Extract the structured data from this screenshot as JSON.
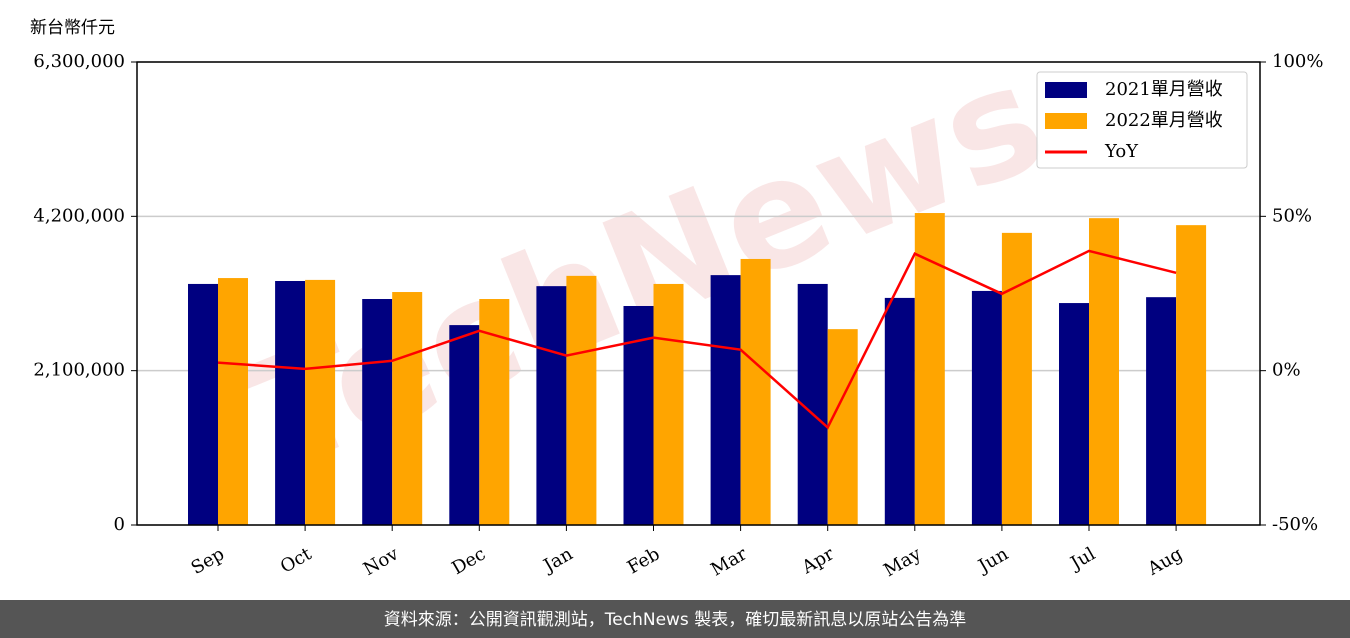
{
  "chart_data": {
    "type": "bar",
    "y_label": "新台幣仟元",
    "watermark": "TechNews",
    "footer": "資料來源：公開資訊觀測站，TechNews 製表，確切最新訊息以原站公告為準",
    "categories": [
      "Sep",
      "Oct",
      "Nov",
      "Dec",
      "Jan",
      "Feb",
      "Mar",
      "Apr",
      "May",
      "Jun",
      "Jul",
      "Aug"
    ],
    "series": [
      {
        "name": "2021單月營收",
        "color": "#000080",
        "values": [
          3280000,
          3320000,
          3075000,
          2720000,
          3250000,
          2980000,
          3400000,
          3280000,
          3090000,
          3185000,
          3020000,
          3100000
        ]
      },
      {
        "name": "2022單月營收",
        "color": "#ffa500",
        "values": [
          3360000,
          3335000,
          3170000,
          3075000,
          3390000,
          3280000,
          3620000,
          2665000,
          4245000,
          3975000,
          4175000,
          4080000
        ]
      },
      {
        "name": "YoY",
        "type": "line",
        "axis": "y2",
        "color": "#ff0000",
        "values": [
          2.6,
          0.6,
          3.2,
          12.9,
          4.9,
          10.7,
          6.8,
          -18.4,
          37.9,
          24.9,
          38.8,
          31.7
        ]
      }
    ],
    "ylim": [
      0,
      6300000
    ],
    "yticks": [
      0,
      {
        "value": 2100000,
        "label": "2,100,000"
      },
      {
        "value": 4200000,
        "label": "4,200,000"
      },
      {
        "value": 6300000,
        "label": "6,300,000"
      }
    ],
    "y2lim": [
      -50,
      100
    ],
    "y2ticks": [
      {
        "value": -50,
        "label": "-50%"
      },
      {
        "value": 0,
        "label": "0%"
      },
      {
        "value": 50,
        "label": "50%"
      },
      {
        "value": 100,
        "label": "100%"
      }
    ],
    "grid": true,
    "legend": "upper right"
  }
}
